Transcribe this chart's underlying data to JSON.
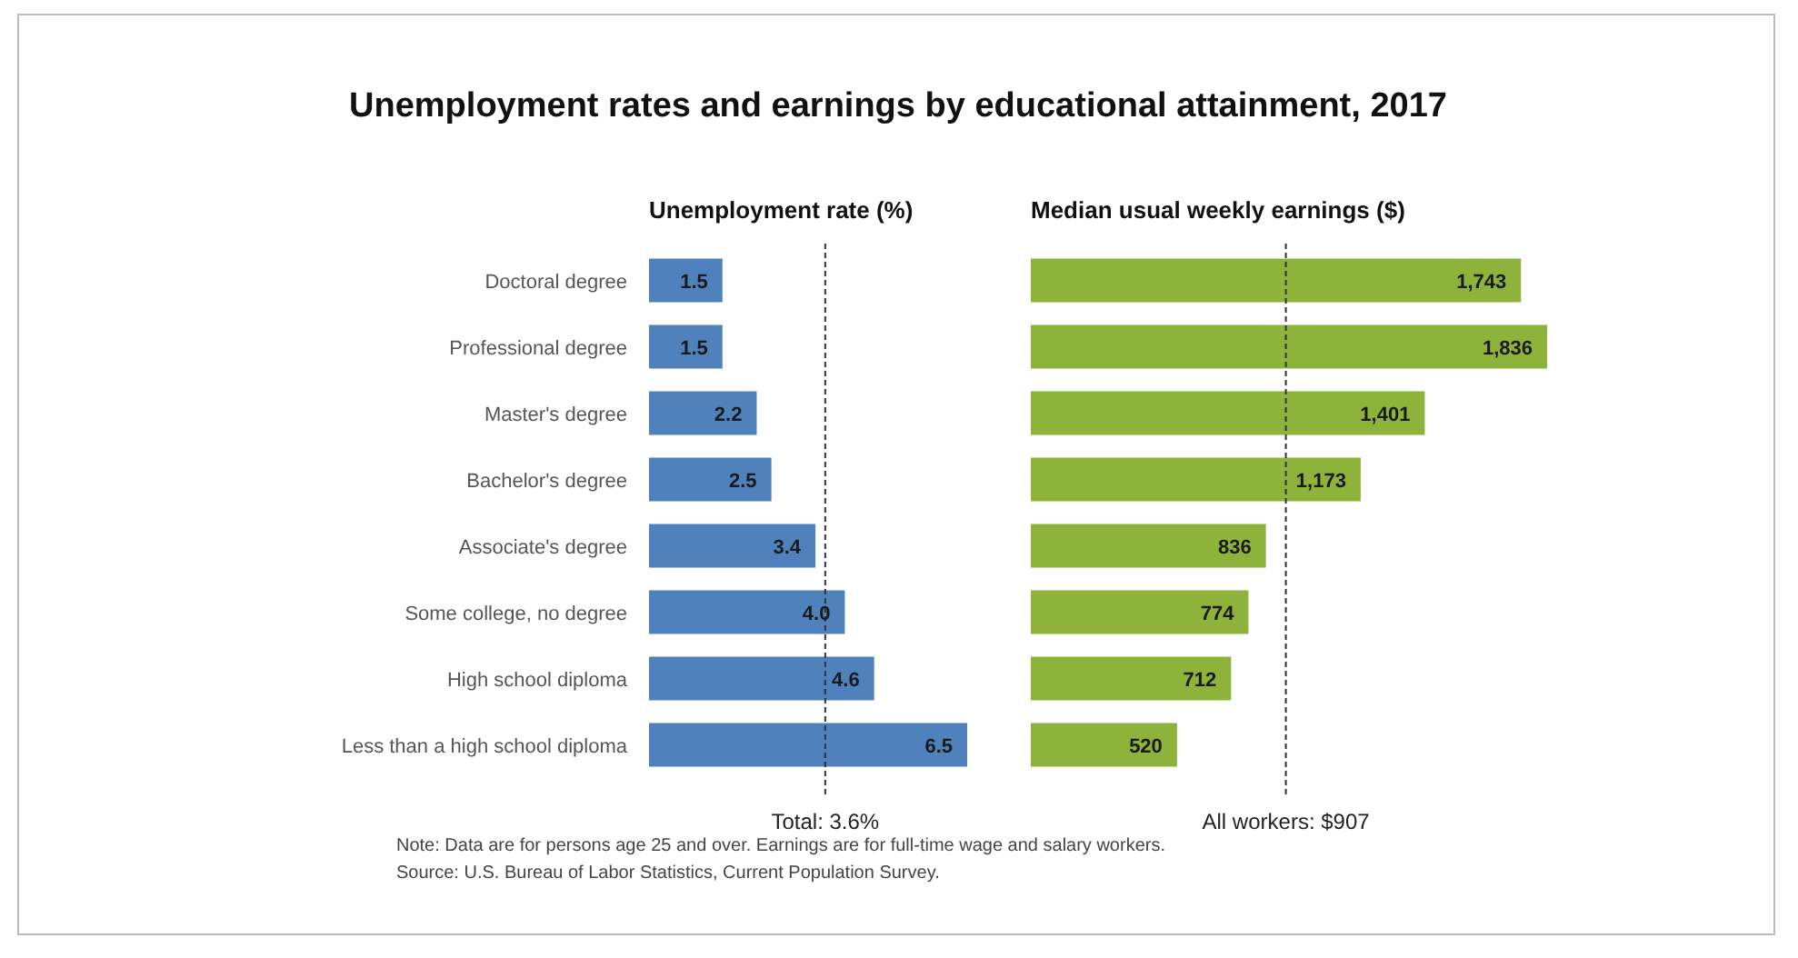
{
  "chart_data": [
    {
      "type": "bar",
      "orientation": "horizontal",
      "title": "Unemployment rates and earnings by educational attainment, 2017",
      "subtitle": "Unemployment rate (%)",
      "categories": [
        "Doctoral degree",
        "Professional degree",
        "Master's degree",
        "Bachelor's degree",
        "Associate's degree",
        "Some college, no degree",
        "High school diploma",
        "Less than a high school diploma"
      ],
      "values": [
        1.5,
        1.5,
        2.2,
        2.5,
        3.4,
        4.0,
        4.6,
        6.5
      ],
      "value_labels": [
        "1.5",
        "1.5",
        "2.2",
        "2.5",
        "3.4",
        "4.0",
        "4.6",
        "6.5"
      ],
      "color": "#4f81bd",
      "tick_labels": "y",
      "ref_lines": [
        {
          "axis": "x",
          "value": 3.6,
          "label": "Total: 3.6%",
          "line_style": "dashed"
        }
      ],
      "annotations": [
        "Note: Data are for persons age 25 and over. Earnings are for full-time wage and salary workers.",
        "Source: U.S. Bureau of Labor Statistics, Current Population Survey."
      ]
    },
    {
      "type": "bar",
      "orientation": "horizontal",
      "subtitle": "Median usual weekly earnings ($)",
      "categories": [
        null,
        null,
        null,
        null,
        null,
        null,
        null,
        null
      ],
      "values": [
        1743,
        1836,
        1401,
        1173,
        836,
        774,
        712,
        520
      ],
      "value_labels": [
        "1,743",
        "1,836",
        "1,401",
        "1,173",
        "836",
        "774",
        "712",
        "520"
      ],
      "color": "#8db33a",
      "ref_lines": [
        {
          "axis": "x",
          "value": 907,
          "label": "All workers: $907",
          "line_style": "dashed"
        }
      ]
    }
  ]
}
